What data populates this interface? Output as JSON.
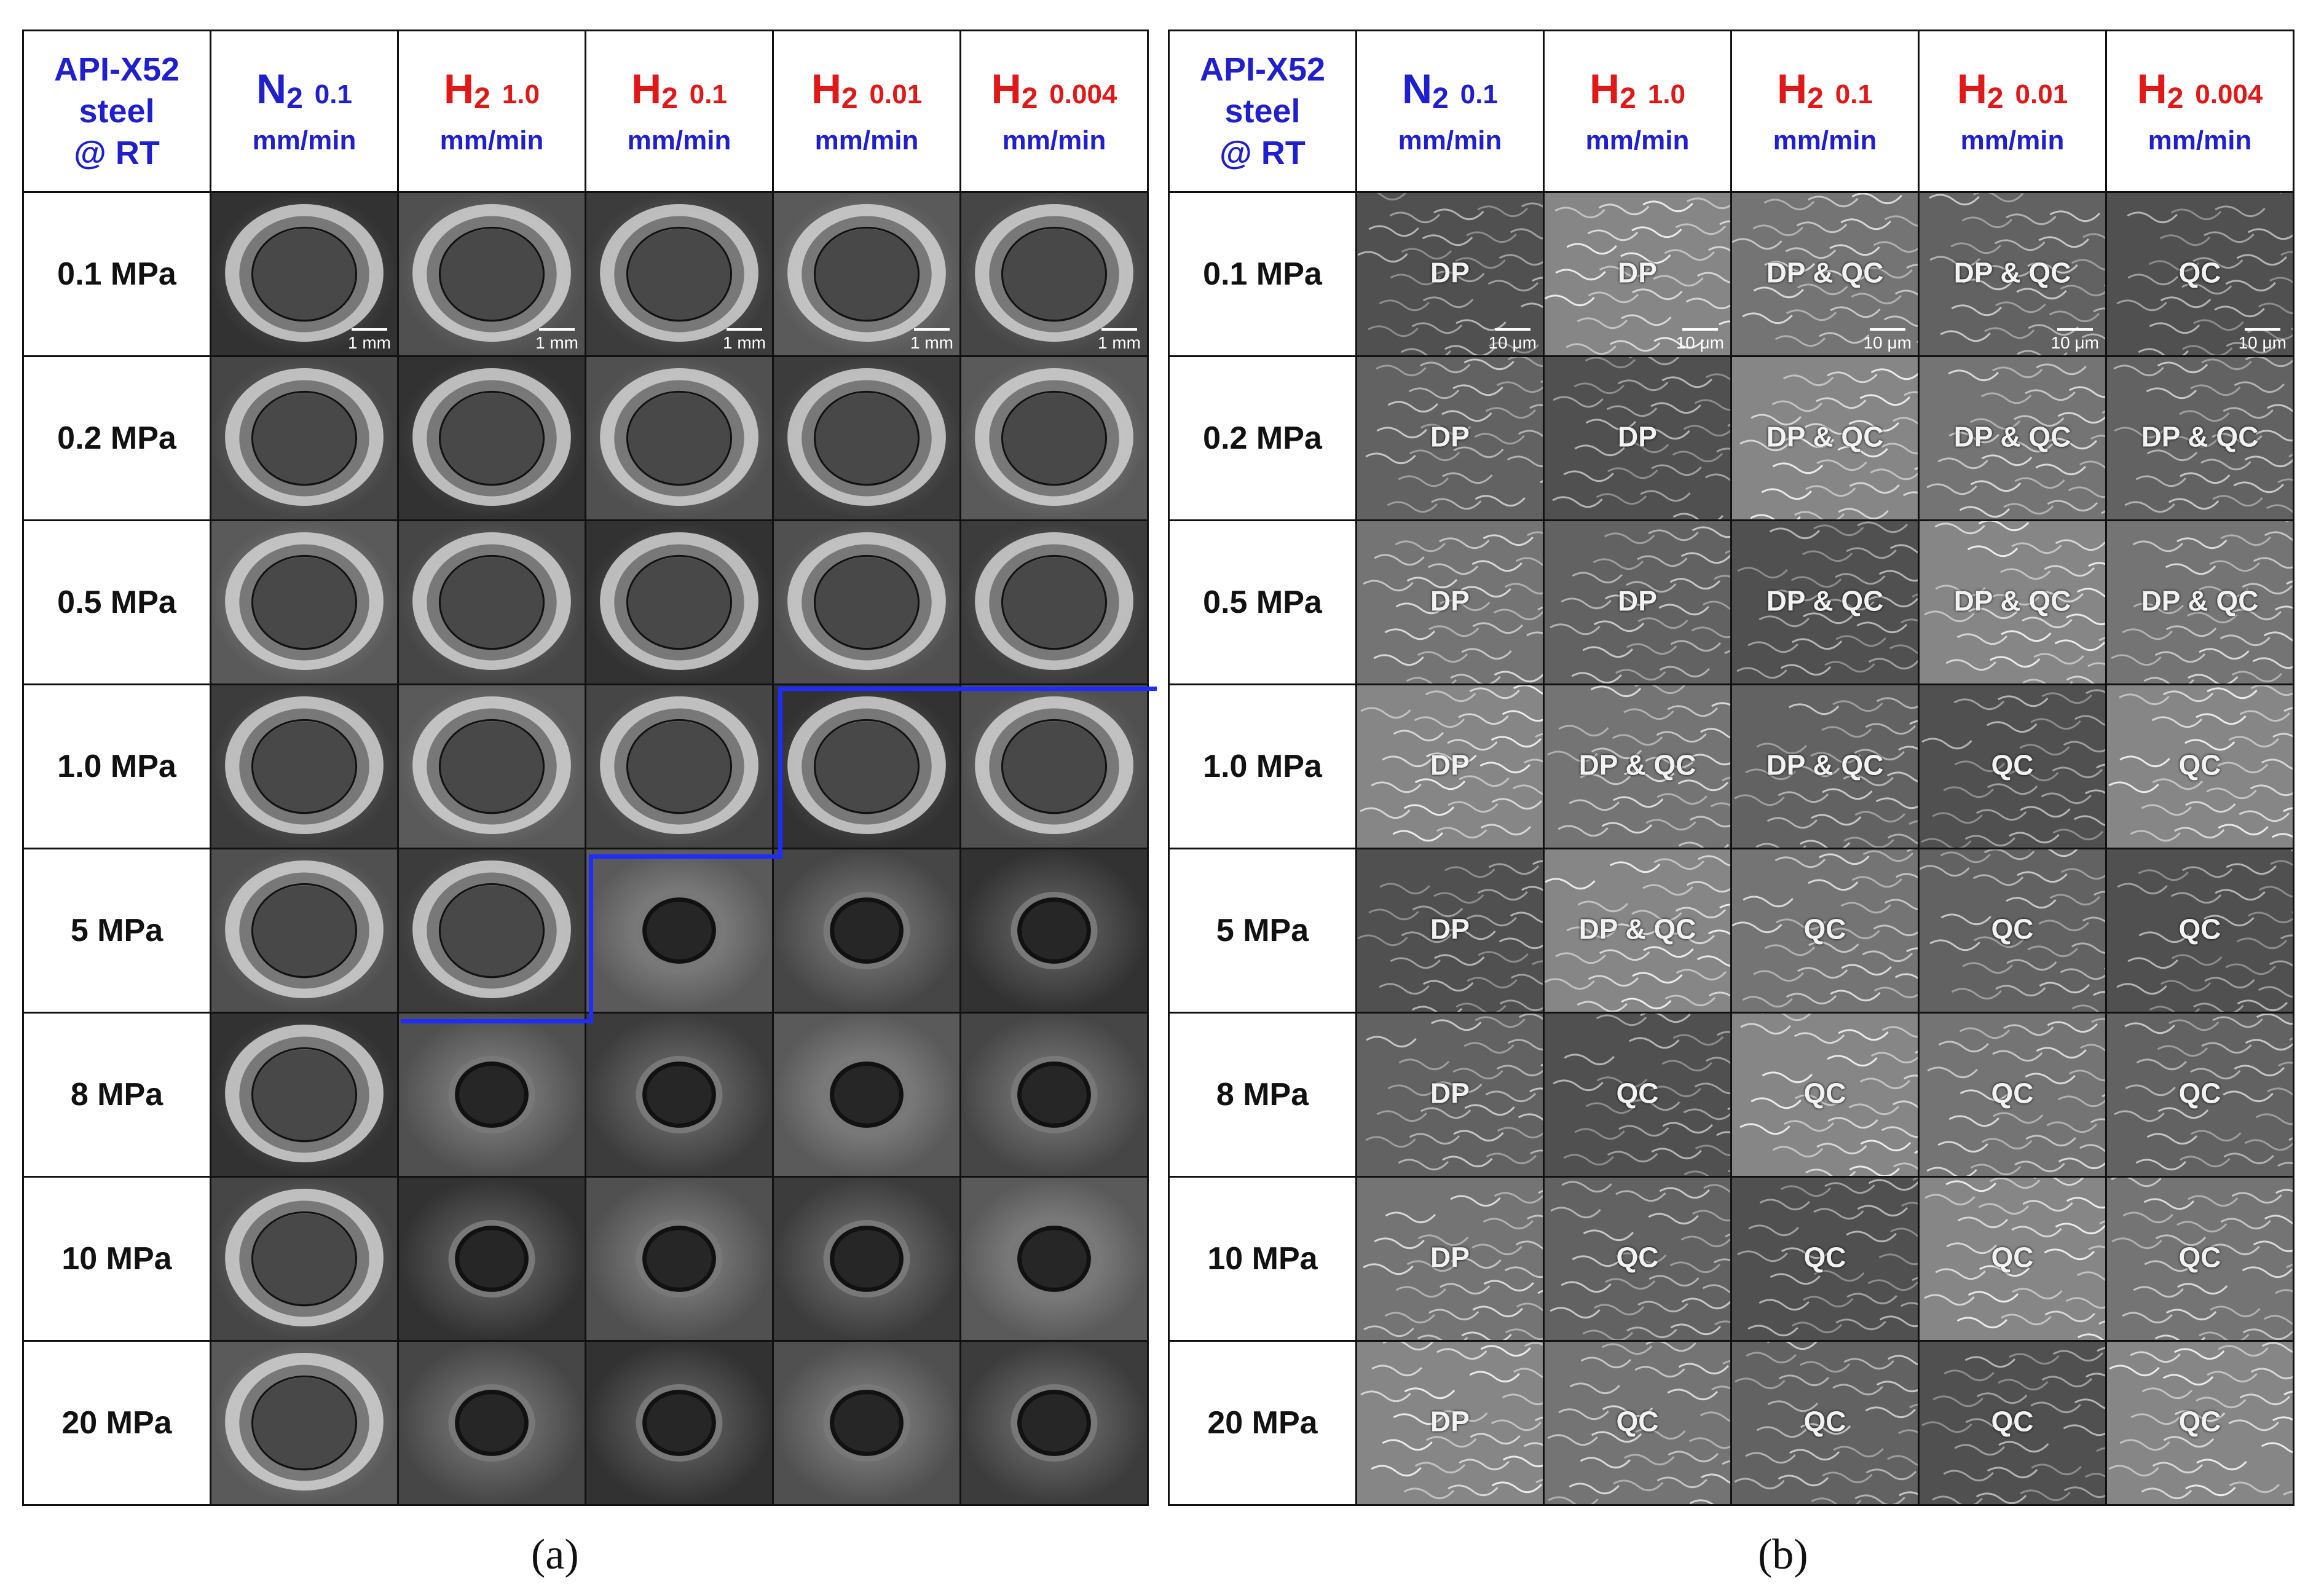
{
  "corner": {
    "line1": "API-X52",
    "line2": "steel",
    "line3": "@ RT"
  },
  "columns": [
    {
      "gas": "N",
      "sub": "2",
      "rate": "0.1",
      "unit": "mm/min",
      "kind": "n"
    },
    {
      "gas": "H",
      "sub": "2",
      "rate": "1.0",
      "unit": "mm/min",
      "kind": "h"
    },
    {
      "gas": "H",
      "sub": "2",
      "rate": "0.1",
      "unit": "mm/min",
      "kind": "h"
    },
    {
      "gas": "H",
      "sub": "2",
      "rate": "0.01",
      "unit": "mm/min",
      "kind": "h"
    },
    {
      "gas": "H",
      "sub": "2",
      "rate": "0.004",
      "unit": "mm/min",
      "kind": "h"
    }
  ],
  "rows": [
    "0.1 MPa",
    "0.2 MPa",
    "0.5 MPa",
    "1.0 MPa",
    "5 MPa",
    "8 MPa",
    "10 MPa",
    "20 MPa"
  ],
  "scale_a": "1 mm",
  "scale_b": "10 μm",
  "fracture_labels": [
    [
      "DP",
      "DP",
      "DP & QC",
      "DP & QC",
      "QC"
    ],
    [
      "DP",
      "DP",
      "DP & QC",
      "DP & QC",
      "DP & QC"
    ],
    [
      "DP",
      "DP",
      "DP & QC",
      "DP & QC",
      "DP & QC"
    ],
    [
      "DP",
      "DP & QC",
      "DP & QC",
      "QC",
      "QC"
    ],
    [
      "DP",
      "DP & QC",
      "QC",
      "QC",
      "QC"
    ],
    [
      "DP",
      "QC",
      "QC",
      "QC",
      "QC"
    ],
    [
      "DP",
      "QC",
      "QC",
      "QC",
      "QC"
    ],
    [
      "DP",
      "QC",
      "QC",
      "QC",
      "QC"
    ]
  ],
  "captions": {
    "a": "(a)",
    "b": "(b)"
  },
  "colors": {
    "n2": "#1f1fd0",
    "h2": "#e01818",
    "boundary": "#1e2cff"
  }
}
